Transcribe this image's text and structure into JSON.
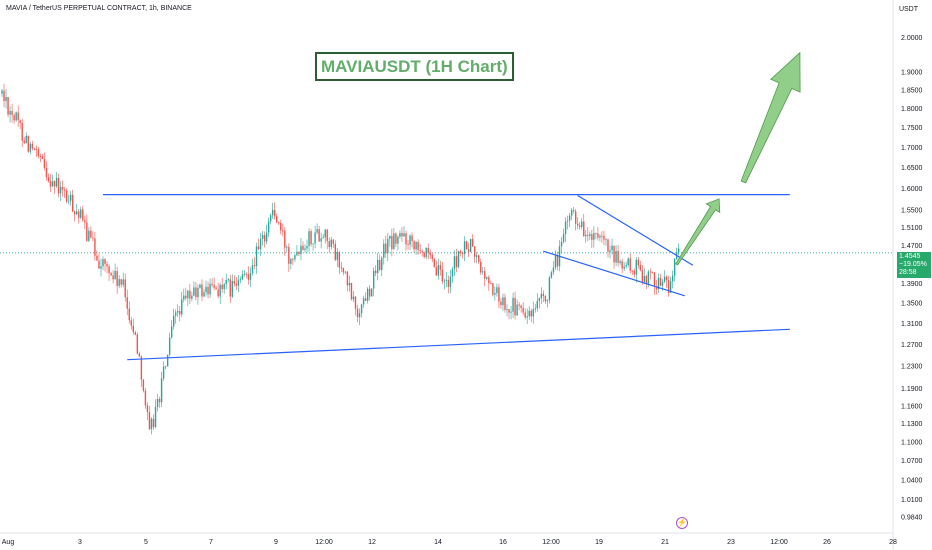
{
  "header": {
    "symbol_line": "MAVIA / TetherUS PERPETUAL CONTRACT, 1h, BINANCE",
    "currency": "USDT"
  },
  "annotation_title": "MAVIAUSDT (1H Chart)",
  "price_tag": {
    "price": "1.4545",
    "change": "−19.05%",
    "countdown": "28:58",
    "color": "#27a96c"
  },
  "event_icon": "lightning-icon",
  "colors": {
    "up": "#26a69a",
    "down": "#ef5350",
    "trendline": "#2962ff",
    "arrow": "#7cc576",
    "title_border": "#2e5d34",
    "title_text": "#63ad6b"
  },
  "chart_data": {
    "type": "candlestick",
    "title": "",
    "x_tick_labels": [
      "Aug",
      "3",
      "5",
      "7",
      "9",
      "12:00",
      "12",
      "14",
      "16",
      "12:00",
      "19",
      "21",
      "23",
      "12:00",
      "26",
      "28"
    ],
    "y_tick_labels": [
      "2.0000",
      "1.9000",
      "1.8500",
      "1.8000",
      "1.7500",
      "1.7000",
      "1.6500",
      "1.6000",
      "1.5500",
      "1.5100",
      "1.4700",
      "1.4300",
      "1.3900",
      "1.3500",
      "1.3100",
      "1.2700",
      "1.2300",
      "1.1900",
      "1.1600",
      "1.1300",
      "1.1000",
      "1.0700",
      "1.0400",
      "1.0100",
      "0.9840"
    ],
    "y_scale": "log",
    "ylim": [
      0.98,
      2.07
    ],
    "current_price": 1.4545,
    "path_points": [
      {
        "i": 0,
        "p": 1.84
      },
      {
        "i": 14,
        "p": 1.7
      },
      {
        "i": 26,
        "p": 1.61
      },
      {
        "i": 37,
        "p": 1.55
      },
      {
        "i": 48,
        "p": 1.44
      },
      {
        "i": 60,
        "p": 1.38
      },
      {
        "i": 68,
        "p": 1.25
      },
      {
        "i": 73,
        "p": 1.11
      },
      {
        "i": 78,
        "p": 1.18
      },
      {
        "i": 86,
        "p": 1.33
      },
      {
        "i": 94,
        "p": 1.37
      },
      {
        "i": 104,
        "p": 1.38
      },
      {
        "i": 114,
        "p": 1.38
      },
      {
        "i": 120,
        "p": 1.4
      },
      {
        "i": 128,
        "p": 1.47
      },
      {
        "i": 134,
        "p": 1.55
      },
      {
        "i": 142,
        "p": 1.45
      },
      {
        "i": 152,
        "p": 1.49
      },
      {
        "i": 160,
        "p": 1.5
      },
      {
        "i": 170,
        "p": 1.4
      },
      {
        "i": 176,
        "p": 1.33
      },
      {
        "i": 184,
        "p": 1.4
      },
      {
        "i": 190,
        "p": 1.47
      },
      {
        "i": 198,
        "p": 1.49
      },
      {
        "i": 206,
        "p": 1.48
      },
      {
        "i": 212,
        "p": 1.43
      },
      {
        "i": 220,
        "p": 1.39
      },
      {
        "i": 226,
        "p": 1.45
      },
      {
        "i": 232,
        "p": 1.47
      },
      {
        "i": 238,
        "p": 1.41
      },
      {
        "i": 246,
        "p": 1.36
      },
      {
        "i": 254,
        "p": 1.34
      },
      {
        "i": 262,
        "p": 1.32
      },
      {
        "i": 270,
        "p": 1.37
      },
      {
        "i": 276,
        "p": 1.46
      },
      {
        "i": 282,
        "p": 1.55
      },
      {
        "i": 290,
        "p": 1.49
      },
      {
        "i": 298,
        "p": 1.47
      },
      {
        "i": 306,
        "p": 1.43
      },
      {
        "i": 314,
        "p": 1.42
      },
      {
        "i": 322,
        "p": 1.4
      },
      {
        "i": 330,
        "p": 1.39
      },
      {
        "i": 335,
        "p": 1.45
      }
    ],
    "annotations": {
      "resistance": [
        {
          "i": 50,
          "p": 1.585
        },
        {
          "i": 390,
          "p": 1.585
        }
      ],
      "support": [
        {
          "i": 62,
          "p": 1.242
        },
        {
          "i": 390,
          "p": 1.299
        }
      ],
      "wedge_upper": [
        {
          "i": 285,
          "p": 1.583
        },
        {
          "i": 342,
          "p": 1.428
        }
      ],
      "wedge_lower": [
        {
          "i": 268,
          "p": 1.458
        },
        {
          "i": 338,
          "p": 1.365
        }
      ],
      "arrow_small": [
        {
          "i": 334,
          "p": 1.43
        },
        {
          "i": 355,
          "p": 1.575
        }
      ],
      "arrow_big": [
        {
          "i": 367,
          "p": 1.615
        },
        {
          "i": 395,
          "p": 1.955
        }
      ]
    }
  }
}
